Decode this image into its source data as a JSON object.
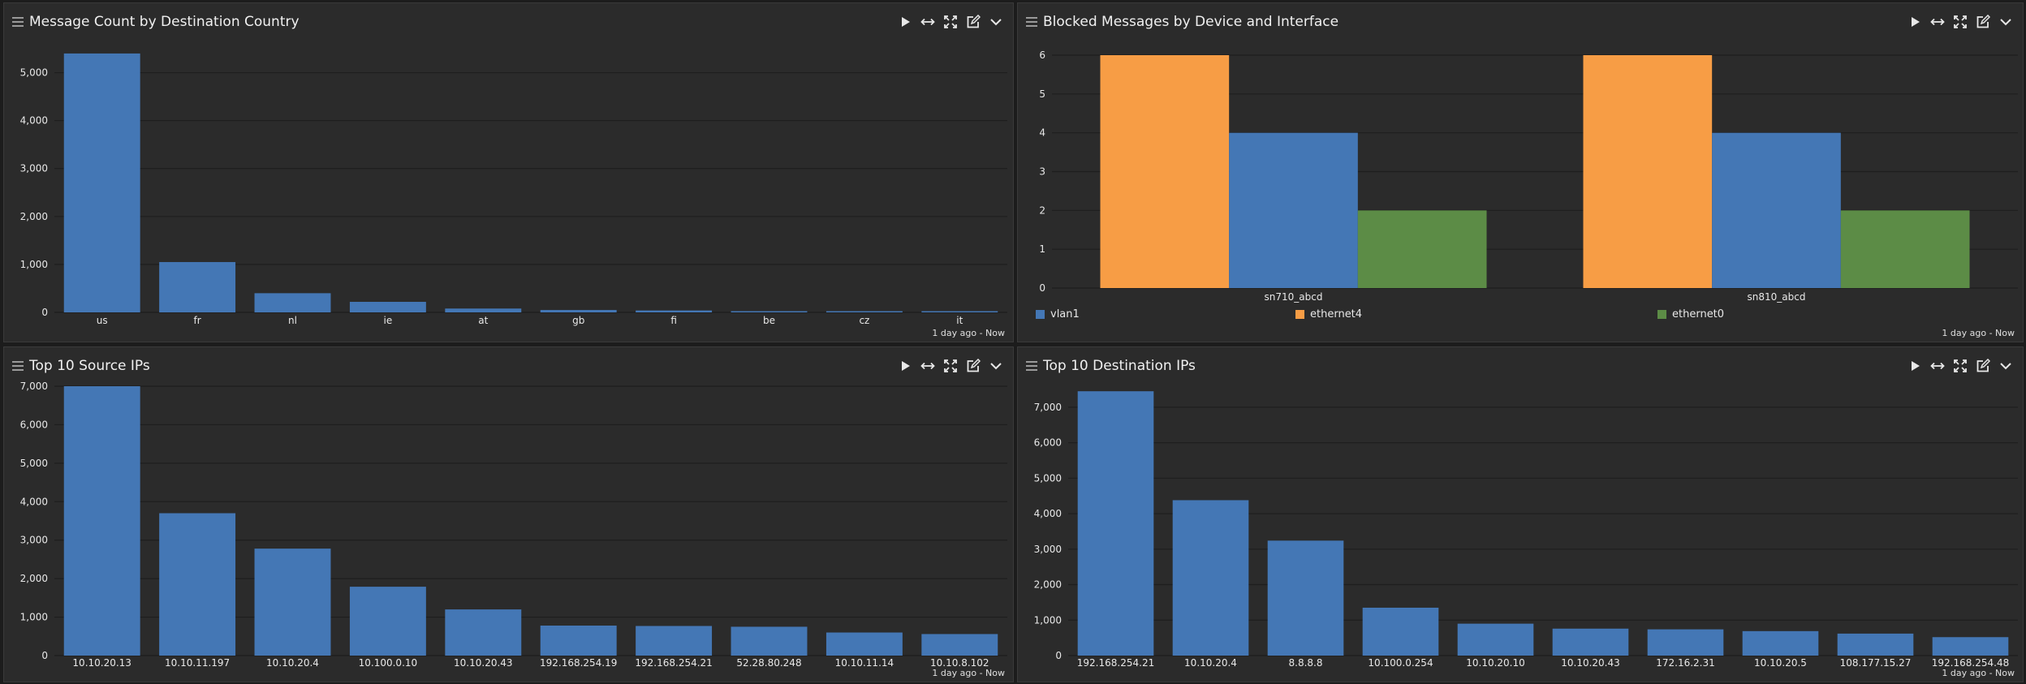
{
  "colors": {
    "bar_blue": "#4477b5",
    "bar_orange": "#f79d45",
    "bar_green": "#5c8c46",
    "gridline": "#202020",
    "tick_text": "#e8e8e8",
    "panel_bg": "#2b2b2b"
  },
  "panel_icons": [
    "menu-icon",
    "play-icon",
    "horizontal-resize-icon",
    "expand-icon",
    "edit-icon",
    "chevron-down-icon"
  ],
  "panels": [
    {
      "title": "Message Count by Destination Country",
      "timestamp": "1 day ago - Now"
    },
    {
      "title": "Blocked Messages by Device and Interface",
      "timestamp": "1 day ago - Now",
      "legend": [
        "vlan1",
        "ethernet4",
        "ethernet0"
      ]
    },
    {
      "title": "Top 10 Source IPs",
      "timestamp": "1 day ago - Now"
    },
    {
      "title": "Top 10 Destination IPs",
      "timestamp": "1 day ago - Now"
    }
  ],
  "chart_data": [
    {
      "type": "bar",
      "title": "Message Count by Destination Country",
      "categories": [
        "us",
        "fr",
        "nl",
        "ie",
        "at",
        "gb",
        "fi",
        "be",
        "cz",
        "it"
      ],
      "values": [
        5400,
        1050,
        400,
        220,
        80,
        50,
        40,
        25,
        20,
        15
      ],
      "ylim": [
        0,
        5500
      ],
      "yticks": [
        0,
        1000,
        2000,
        3000,
        4000,
        5000
      ],
      "ytick_labels": [
        "0",
        "1,000",
        "2,000",
        "3,000",
        "4,000",
        "5,000"
      ],
      "grid": true
    },
    {
      "type": "bar",
      "title": "Blocked Messages by Device and Interface",
      "categories": [
        "sn710_abcd",
        "sn810_abcd"
      ],
      "series": [
        {
          "name": "ethernet4",
          "values": [
            6,
            6
          ]
        },
        {
          "name": "vlan1",
          "values": [
            4,
            4
          ]
        },
        {
          "name": "ethernet0",
          "values": [
            2,
            2
          ]
        }
      ],
      "ylim": [
        0,
        6
      ],
      "yticks": [
        0,
        1,
        2,
        3,
        4,
        5,
        6
      ],
      "ytick_labels": [
        "0",
        "1",
        "2",
        "3",
        "4",
        "5",
        "6"
      ],
      "grid": true,
      "legend_placement": "bottom"
    },
    {
      "type": "bar",
      "title": "Top 10 Source IPs",
      "categories": [
        "10.10.20.13",
        "10.10.11.197",
        "10.10.20.4",
        "10.100.0.10",
        "10.10.20.43",
        "192.168.254.19",
        "192.168.254.21",
        "52.28.80.248",
        "10.10.11.14",
        "10.10.8.102"
      ],
      "values": [
        7000,
        3700,
        2780,
        1790,
        1200,
        780,
        770,
        750,
        600,
        560
      ],
      "ylim": [
        0,
        7000
      ],
      "yticks": [
        0,
        1000,
        2000,
        3000,
        4000,
        5000,
        6000,
        7000
      ],
      "ytick_labels": [
        "0",
        "1,000",
        "2,000",
        "3,000",
        "4,000",
        "5,000",
        "6,000",
        "7,000"
      ],
      "grid": true
    },
    {
      "type": "bar",
      "title": "Top 10 Destination IPs",
      "categories": [
        "192.168.254.21",
        "10.10.20.4",
        "8.8.8.8",
        "10.100.0.254",
        "10.10.20.10",
        "10.10.20.43",
        "172.16.2.31",
        "10.10.20.5",
        "108.177.15.27",
        "192.168.254.48"
      ],
      "values": [
        7450,
        4380,
        3240,
        1350,
        900,
        760,
        740,
        690,
        620,
        520
      ],
      "ylim": [
        0,
        7500
      ],
      "yticks": [
        0,
        1000,
        2000,
        3000,
        4000,
        5000,
        6000,
        7000
      ],
      "ytick_labels": [
        "0",
        "1,000",
        "2,000",
        "3,000",
        "4,000",
        "5,000",
        "6,000",
        "7,000"
      ],
      "grid": true
    }
  ]
}
